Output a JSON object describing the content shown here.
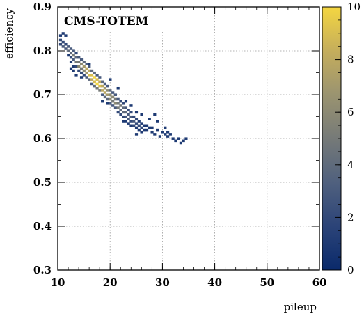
{
  "chart_data": {
    "type": "heatmap",
    "title": "CMS-TOTEM",
    "xlabel": "pileup",
    "ylabel": "efficiency",
    "xlim": [
      10,
      60
    ],
    "ylim": [
      0.3,
      0.9
    ],
    "x_ticks": [
      "10",
      "20",
      "30",
      "40",
      "50",
      "60"
    ],
    "y_ticks": [
      "0.3",
      "0.4",
      "0.5",
      "0.6",
      "0.7",
      "0.8",
      "0.9"
    ],
    "grid": true,
    "colorbar": {
      "range": [
        0,
        10
      ],
      "ticks": [
        "0",
        "2",
        "4",
        "6",
        "8",
        "10"
      ],
      "colors": [
        "#0a2a6b",
        "#2c4478",
        "#4f607e",
        "#767a78",
        "#9b9470",
        "#c4ad5c",
        "#f4d641"
      ]
    },
    "bin_size": [
      0.5,
      0.005
    ],
    "bins": [
      [
        10.5,
        0.825,
        2
      ],
      [
        10.5,
        0.815,
        2
      ],
      [
        11.0,
        0.82,
        2
      ],
      [
        11.0,
        0.81,
        3
      ],
      [
        11.5,
        0.815,
        2
      ],
      [
        11.5,
        0.805,
        3
      ],
      [
        11.5,
        0.835,
        1
      ],
      [
        12.0,
        0.81,
        3
      ],
      [
        12.0,
        0.8,
        4
      ],
      [
        12.0,
        0.79,
        1
      ],
      [
        12.5,
        0.805,
        3
      ],
      [
        12.5,
        0.795,
        4
      ],
      [
        12.5,
        0.785,
        2
      ],
      [
        12.5,
        0.775,
        1
      ],
      [
        13.0,
        0.8,
        3
      ],
      [
        13.0,
        0.79,
        5
      ],
      [
        13.0,
        0.78,
        3
      ],
      [
        13.0,
        0.765,
        1
      ],
      [
        13.5,
        0.795,
        2
      ],
      [
        13.5,
        0.785,
        4
      ],
      [
        13.5,
        0.775,
        5
      ],
      [
        13.5,
        0.765,
        2
      ],
      [
        14.0,
        0.785,
        3
      ],
      [
        14.0,
        0.775,
        5
      ],
      [
        14.0,
        0.765,
        6
      ],
      [
        14.0,
        0.755,
        2
      ],
      [
        14.5,
        0.78,
        3
      ],
      [
        14.5,
        0.77,
        6
      ],
      [
        14.5,
        0.76,
        5
      ],
      [
        14.5,
        0.75,
        2
      ],
      [
        15.0,
        0.775,
        4
      ],
      [
        15.0,
        0.765,
        7
      ],
      [
        15.0,
        0.755,
        6
      ],
      [
        15.0,
        0.745,
        2
      ],
      [
        15.5,
        0.77,
        3
      ],
      [
        15.5,
        0.76,
        8
      ],
      [
        15.5,
        0.75,
        7
      ],
      [
        15.5,
        0.74,
        3
      ],
      [
        16.0,
        0.765,
        3
      ],
      [
        16.0,
        0.755,
        8
      ],
      [
        16.0,
        0.745,
        9
      ],
      [
        16.0,
        0.735,
        4
      ],
      [
        16.5,
        0.755,
        4
      ],
      [
        16.5,
        0.745,
        9
      ],
      [
        16.5,
        0.735,
        8
      ],
      [
        16.5,
        0.725,
        3
      ],
      [
        17.0,
        0.75,
        4
      ],
      [
        17.0,
        0.74,
        10
      ],
      [
        17.0,
        0.73,
        9
      ],
      [
        17.0,
        0.72,
        4
      ],
      [
        17.5,
        0.745,
        3
      ],
      [
        17.5,
        0.735,
        9
      ],
      [
        17.5,
        0.725,
        10
      ],
      [
        17.5,
        0.715,
        5
      ],
      [
        18.0,
        0.74,
        3
      ],
      [
        18.0,
        0.73,
        8
      ],
      [
        18.0,
        0.72,
        9
      ],
      [
        18.0,
        0.71,
        5
      ],
      [
        18.5,
        0.73,
        4
      ],
      [
        18.5,
        0.72,
        8
      ],
      [
        18.5,
        0.71,
        8
      ],
      [
        18.5,
        0.7,
        3
      ],
      [
        19.0,
        0.725,
        3
      ],
      [
        19.0,
        0.715,
        7
      ],
      [
        19.0,
        0.705,
        8
      ],
      [
        19.0,
        0.695,
        4
      ],
      [
        19.5,
        0.72,
        3
      ],
      [
        19.5,
        0.71,
        6
      ],
      [
        19.5,
        0.7,
        7
      ],
      [
        19.5,
        0.69,
        4
      ],
      [
        20.0,
        0.71,
        4
      ],
      [
        20.0,
        0.7,
        6
      ],
      [
        20.0,
        0.69,
        6
      ],
      [
        20.0,
        0.68,
        3
      ],
      [
        20.5,
        0.705,
        3
      ],
      [
        20.5,
        0.695,
        6
      ],
      [
        20.5,
        0.685,
        5
      ],
      [
        20.5,
        0.675,
        3
      ],
      [
        21.0,
        0.7,
        3
      ],
      [
        21.0,
        0.69,
        5
      ],
      [
        21.0,
        0.68,
        6
      ],
      [
        21.0,
        0.67,
        3
      ],
      [
        21.5,
        0.69,
        3
      ],
      [
        21.5,
        0.68,
        5
      ],
      [
        21.5,
        0.67,
        5
      ],
      [
        21.5,
        0.66,
        2
      ],
      [
        22.0,
        0.685,
        2
      ],
      [
        22.0,
        0.675,
        5
      ],
      [
        22.0,
        0.665,
        4
      ],
      [
        22.0,
        0.655,
        2
      ],
      [
        22.5,
        0.68,
        2
      ],
      [
        22.5,
        0.67,
        4
      ],
      [
        22.5,
        0.66,
        4
      ],
      [
        22.5,
        0.65,
        2
      ],
      [
        23.0,
        0.67,
        3
      ],
      [
        23.0,
        0.66,
        4
      ],
      [
        23.0,
        0.65,
        3
      ],
      [
        23.0,
        0.64,
        1
      ],
      [
        23.5,
        0.665,
        2
      ],
      [
        23.5,
        0.655,
        3
      ],
      [
        23.5,
        0.645,
        3
      ],
      [
        23.5,
        0.635,
        1
      ],
      [
        24.0,
        0.66,
        2
      ],
      [
        24.0,
        0.65,
        3
      ],
      [
        24.0,
        0.64,
        2
      ],
      [
        24.0,
        0.63,
        1
      ],
      [
        24.5,
        0.65,
        2
      ],
      [
        24.5,
        0.64,
        3
      ],
      [
        24.5,
        0.63,
        2
      ],
      [
        25.0,
        0.645,
        2
      ],
      [
        25.0,
        0.635,
        2
      ],
      [
        25.0,
        0.625,
        1
      ],
      [
        25.5,
        0.64,
        1
      ],
      [
        25.5,
        0.63,
        2
      ],
      [
        25.5,
        0.62,
        1
      ],
      [
        26.0,
        0.635,
        1
      ],
      [
        26.0,
        0.625,
        2
      ],
      [
        26.0,
        0.615,
        1
      ],
      [
        26.5,
        0.63,
        1
      ],
      [
        26.5,
        0.62,
        1
      ],
      [
        27.0,
        0.62,
        1
      ],
      [
        27.0,
        0.63,
        1
      ],
      [
        27.5,
        0.625,
        1
      ],
      [
        28.0,
        0.615,
        1
      ],
      [
        28.0,
        0.625,
        1
      ],
      [
        28.5,
        0.61,
        1
      ],
      [
        29.0,
        0.62,
        1
      ],
      [
        29.5,
        0.605,
        1
      ],
      [
        30.0,
        0.615,
        1
      ],
      [
        30.5,
        0.61,
        1
      ],
      [
        31.0,
        0.605,
        1
      ],
      [
        31.5,
        0.61,
        1
      ],
      [
        32.0,
        0.6,
        1
      ],
      [
        32.5,
        0.595,
        1
      ],
      [
        33.0,
        0.6,
        1
      ],
      [
        33.5,
        0.59,
        1
      ],
      [
        34.0,
        0.595,
        1
      ],
      [
        34.5,
        0.6,
        1
      ],
      [
        12.5,
        0.76,
        1
      ],
      [
        13.5,
        0.745,
        1
      ],
      [
        16.0,
        0.77,
        1
      ],
      [
        18.5,
        0.685,
        1
      ],
      [
        19.5,
        0.68,
        1
      ],
      [
        20.0,
        0.735,
        1
      ],
      [
        21.5,
        0.715,
        1
      ],
      [
        22.5,
        0.64,
        1
      ],
      [
        23.0,
        0.685,
        1
      ],
      [
        24.0,
        0.675,
        1
      ],
      [
        25.0,
        0.66,
        1
      ],
      [
        25.0,
        0.61,
        1
      ],
      [
        26.0,
        0.655,
        1
      ],
      [
        27.5,
        0.645,
        1
      ],
      [
        28.5,
        0.655,
        1
      ],
      [
        29.0,
        0.64,
        1
      ],
      [
        30.5,
        0.625,
        1
      ],
      [
        31.0,
        0.615,
        1
      ],
      [
        11.0,
        0.84,
        1
      ],
      [
        10.5,
        0.835,
        1
      ],
      [
        13.0,
        0.755,
        1
      ],
      [
        14.5,
        0.74,
        1
      ]
    ]
  }
}
